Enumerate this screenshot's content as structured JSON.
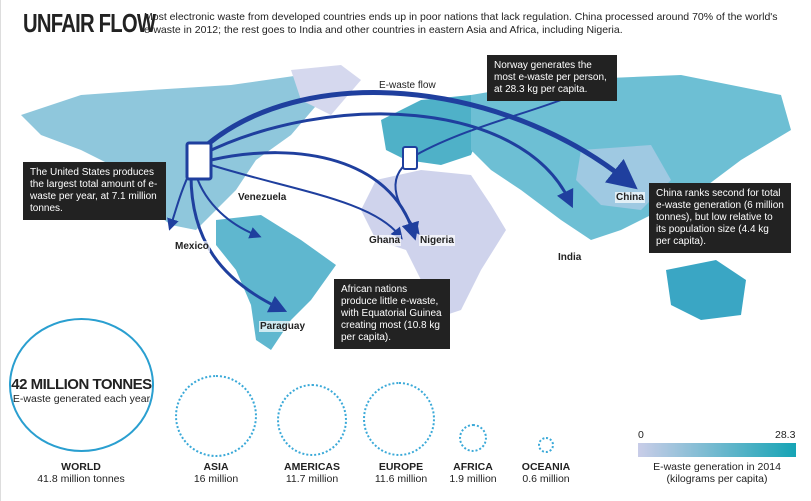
{
  "header": {
    "title": "UNFAIR FLOW",
    "intro": "Most electronic waste from developed countries ends up in poor nations that lack regulation. China processed around 70% of the world's e-waste in 2012; the rest goes to India and other countries in eastern Asia and Africa, including Nigeria."
  },
  "map": {
    "flow_label": "E-waste flow",
    "labels": {
      "venezuela": "Venezuela",
      "mexico": "Mexico",
      "paraguay": "Paraguay",
      "ghana": "Ghana",
      "nigeria": "Nigeria",
      "india": "India",
      "china": "China"
    },
    "callouts": {
      "norway": "Norway generates the most e-waste per person, at 28.3 kg per capita.",
      "us": "The United States produces the largest total amount of e-waste per year, at 7.1 million tonnes.",
      "china": "China ranks second for total e-waste generation (6 million tonnes), but low relative to its population size (4.4 kg per capita).",
      "africa": "African nations produce little e-waste, with Equatorial Guinea creating most (10.8 kg per capita)."
    },
    "colors": {
      "low": "#c9cde8",
      "high": "#16a4b5",
      "flow": "#1f3f9e",
      "callout_bg": "#222222"
    }
  },
  "totals": {
    "headline": "42 MILLION TONNES",
    "headline_sub": "E-waste generated each year",
    "regions": [
      {
        "name": "WORLD",
        "value": "41.8 million tonnes",
        "millions": 41.8
      },
      {
        "name": "ASIA",
        "value": "16 million",
        "millions": 16
      },
      {
        "name": "AMERICAS",
        "value": "11.7 million",
        "millions": 11.7
      },
      {
        "name": "EUROPE",
        "value": "11.6 million",
        "millions": 11.6
      },
      {
        "name": "AFRICA",
        "value": "1.9 million",
        "millions": 1.9
      },
      {
        "name": "OCEANIA",
        "value": "0.6 million",
        "millions": 0.6
      }
    ]
  },
  "legend": {
    "min": "0",
    "max": "28.3",
    "caption_line1": "E-waste generation in 2014",
    "caption_line2": "(kilograms per capita)"
  }
}
